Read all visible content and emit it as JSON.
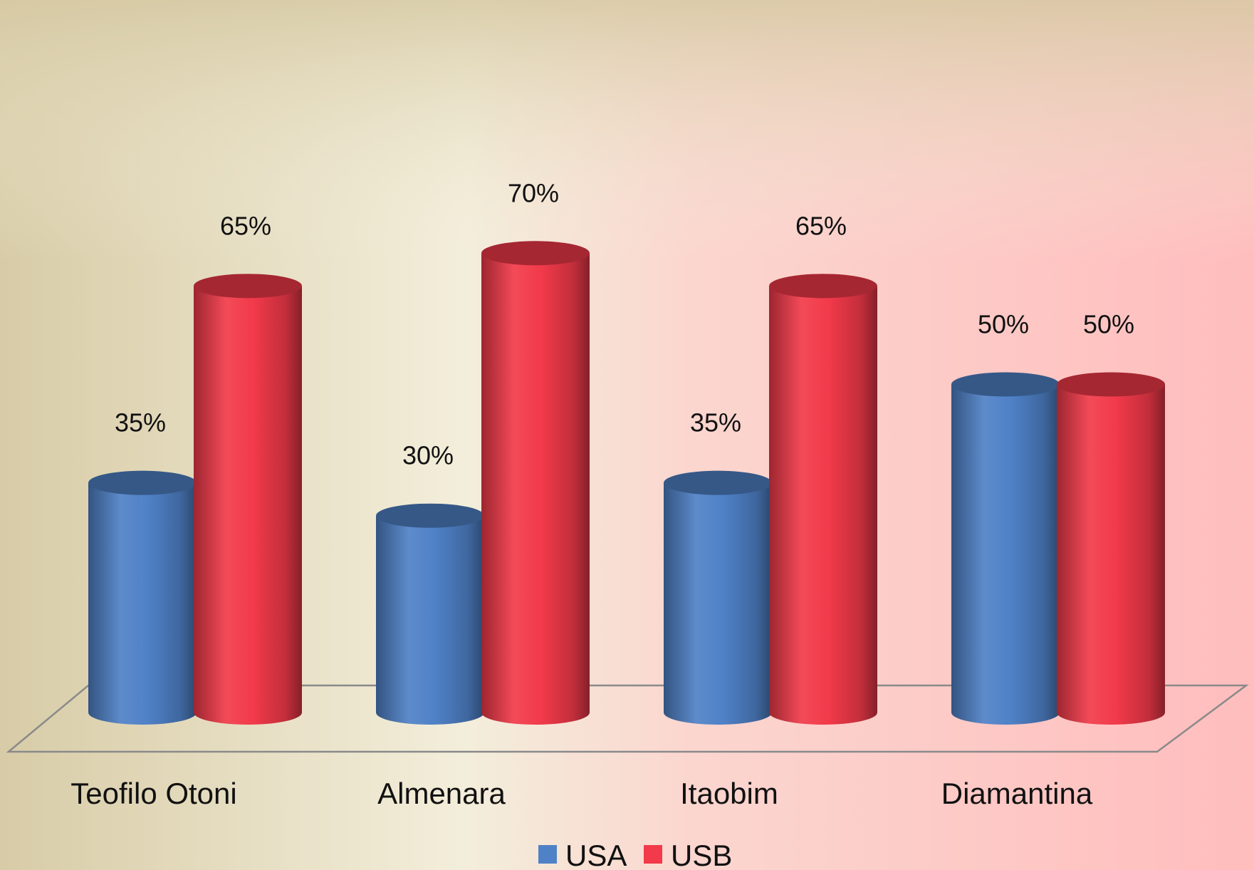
{
  "chart_data": {
    "type": "bar",
    "categories": [
      "Teofilo Otoni",
      "Almenara",
      "Itaobim",
      "Diamantina"
    ],
    "series": [
      {
        "name": "USA",
        "values": [
          35,
          30,
          35,
          50
        ],
        "labels": [
          "35%",
          "30%",
          "35%",
          "50%"
        ],
        "color": "#4f81c7"
      },
      {
        "name": "USB",
        "values": [
          65,
          70,
          65,
          50
        ],
        "labels": [
          "65%",
          "70%",
          "65%",
          "50%"
        ],
        "color": "#f23a4a"
      }
    ],
    "title": "",
    "xlabel": "",
    "ylabel": "",
    "ylim": [
      0,
      70
    ],
    "grid": false,
    "legend_position": "bottom",
    "style": "3d-cylinder",
    "colors": {
      "background_left": "#d8cca7",
      "background_mid": "#f3eedb",
      "background_right": "#ffbdbd"
    }
  }
}
